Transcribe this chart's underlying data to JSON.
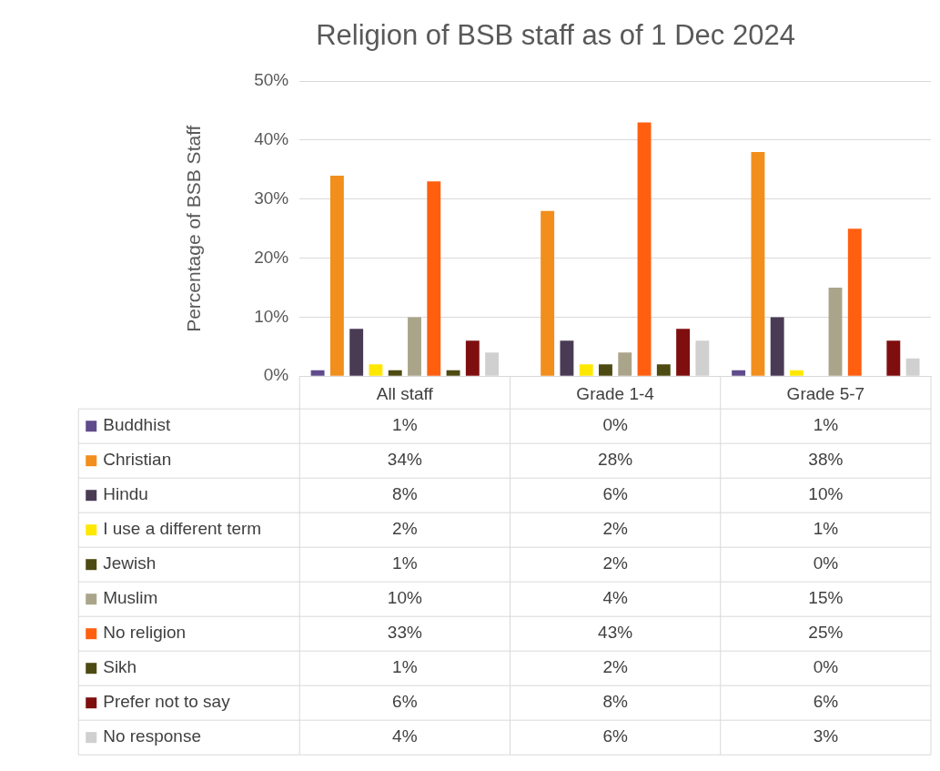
{
  "chart_data": {
    "type": "bar",
    "title": "Religion of BSB staff as of 1 Dec 2024",
    "ylabel": "Percentage of BSB Staff",
    "categories": [
      "All staff",
      "Grade 1-4",
      "Grade 5-7"
    ],
    "series": [
      {
        "name": "Buddhist",
        "color": "#5f4b8b",
        "values": [
          1,
          0,
          1
        ],
        "value_labels": [
          "1%",
          "0%",
          "1%"
        ]
      },
      {
        "name": "Christian",
        "color": "#f28e1c",
        "values": [
          34,
          28,
          38
        ],
        "value_labels": [
          "34%",
          "28%",
          "38%"
        ]
      },
      {
        "name": "Hindu",
        "color": "#4a3b55",
        "values": [
          8,
          6,
          10
        ],
        "value_labels": [
          "8%",
          "6%",
          "10%"
        ]
      },
      {
        "name": "I use a different term",
        "color": "#ffe800",
        "values": [
          2,
          2,
          1
        ],
        "value_labels": [
          "2%",
          "2%",
          "1%"
        ]
      },
      {
        "name": "Jewish",
        "color": "#4d4a12",
        "values": [
          1,
          2,
          0
        ],
        "value_labels": [
          "1%",
          "2%",
          "0%"
        ]
      },
      {
        "name": "Muslim",
        "color": "#aaa58a",
        "values": [
          10,
          4,
          15
        ],
        "value_labels": [
          "10%",
          "4%",
          "15%"
        ]
      },
      {
        "name": "No religion",
        "color": "#ff5f0f",
        "values": [
          33,
          43,
          25
        ],
        "value_labels": [
          "33%",
          "43%",
          "25%"
        ]
      },
      {
        "name": "Sikh",
        "color": "#4d4a12",
        "values": [
          1,
          2,
          0
        ],
        "value_labels": [
          "1%",
          "2%",
          "0%"
        ]
      },
      {
        "name": "Prefer not to say",
        "color": "#7f0f0f",
        "values": [
          6,
          8,
          6
        ],
        "value_labels": [
          "6%",
          "8%",
          "6%"
        ]
      },
      {
        "name": "No response",
        "color": "#d0d0d0",
        "values": [
          4,
          6,
          3
        ],
        "value_labels": [
          "4%",
          "6%",
          "3%"
        ]
      }
    ],
    "ylim": [
      0,
      50
    ],
    "yticks": [
      {
        "value": 0,
        "label": "0%"
      },
      {
        "value": 10,
        "label": "10%"
      },
      {
        "value": 20,
        "label": "20%"
      },
      {
        "value": 30,
        "label": "30%"
      },
      {
        "value": 40,
        "label": "40%"
      },
      {
        "value": 50,
        "label": "50%"
      }
    ],
    "grid": "y",
    "legend": "bottom"
  }
}
